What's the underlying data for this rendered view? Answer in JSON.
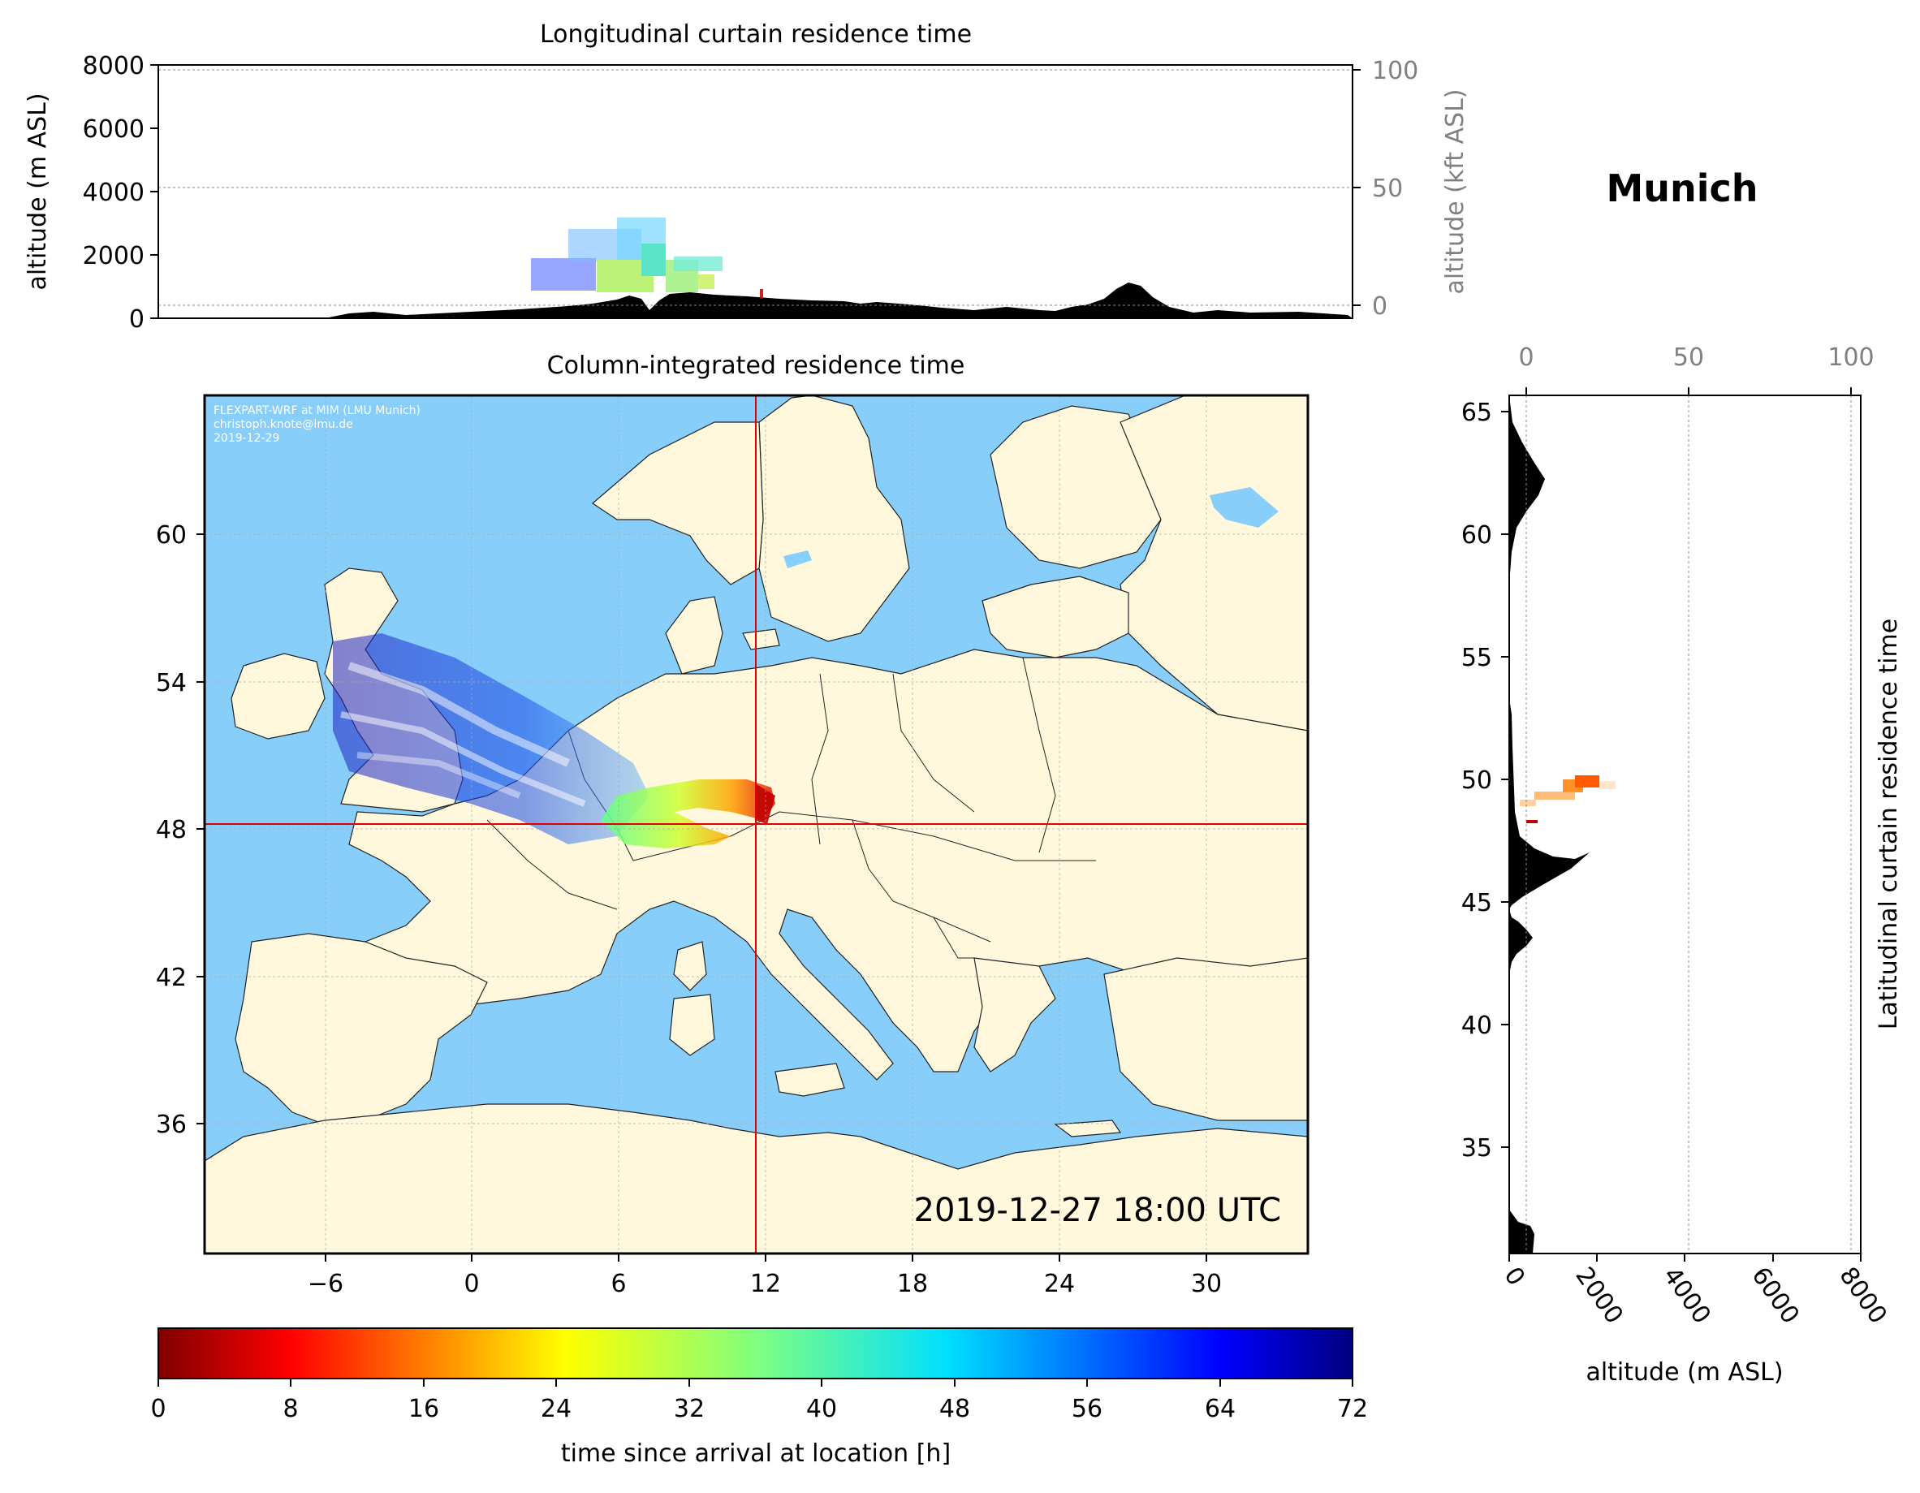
{
  "header": {
    "location": "Munich"
  },
  "top_panel": {
    "title": "Longitudinal curtain residence time",
    "ylabel": "altitude (m ASL)",
    "ylabel_right": "altitude (kft ASL)",
    "yticks": [
      "0",
      "2000",
      "4000",
      "6000",
      "8000"
    ],
    "yticks_right": [
      "0",
      "50",
      "100"
    ]
  },
  "main_map": {
    "title": "Column-integrated residence time",
    "credit": [
      "FLEXPART-WRF at MIM (LMU Munich)",
      "christoph.knote@lmu.de",
      "2019-12-29"
    ],
    "timestamp": "2019-12-27 18:00 UTC",
    "xticks": [
      "−6",
      "0",
      "6",
      "12",
      "18",
      "24",
      "30"
    ],
    "yticks": [
      "36",
      "42",
      "48",
      "54",
      "60"
    ],
    "xlim": [
      -12,
      33
    ],
    "ylim": [
      30.5,
      65.5
    ],
    "crosshair": {
      "lon": 11.6,
      "lat": 48.1
    },
    "colors": {
      "sea": "#87cefa",
      "land": "#fff8dc",
      "crosshair": "#e00000"
    }
  },
  "right_panel": {
    "ylabel": "Latitudinal curtain residence time",
    "xlabel": "altitude (m ASL)",
    "xticks": [
      "0",
      "2000",
      "4000",
      "6000",
      "8000"
    ],
    "xticks_top": [
      "0",
      "50",
      "100"
    ],
    "yticks": [
      "35",
      "40",
      "45",
      "50",
      "55",
      "60",
      "65"
    ]
  },
  "colorbar": {
    "label": "time since arrival at location [h]",
    "ticks": [
      "0",
      "8",
      "16",
      "24",
      "32",
      "40",
      "48",
      "56",
      "64",
      "72"
    ],
    "colormap": "jet_r",
    "range": [
      0,
      72
    ]
  }
}
